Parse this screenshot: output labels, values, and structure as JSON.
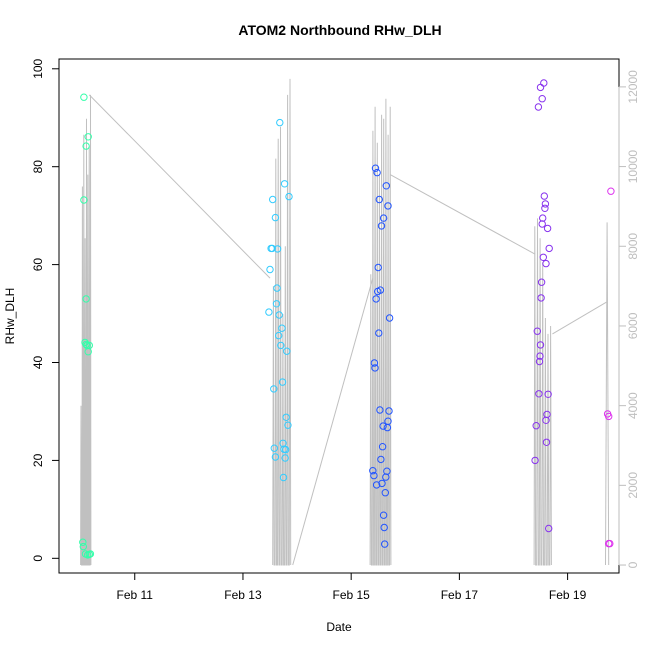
{
  "chart_data": {
    "type": "scatter",
    "title": "ATOM2 Northbound RHw_DLH",
    "xlabel": "Date",
    "ylabel": "RHw_DLH",
    "x_ticks": [
      "Feb 11",
      "Feb 13",
      "Feb 15",
      "Feb 17",
      "Feb 19"
    ],
    "x_tick_positions_days": [
      1.0,
      3.0,
      5.0,
      7.0,
      9.0
    ],
    "x_range_days": [
      -0.4,
      9.95
    ],
    "x_origin": "Feb 10 00:00",
    "y_ticks": [
      0,
      20,
      40,
      60,
      80,
      100
    ],
    "ylim": [
      -3,
      102
    ],
    "y2_ticks": [
      0,
      2000,
      4000,
      6000,
      8000,
      10000,
      12000
    ],
    "y2lim": [
      -200,
      12700
    ],
    "colors": {
      "leg1": "#33ffaa",
      "leg2": "#33ccff",
      "leg3": "#2255ff",
      "leg4": "#8833ee",
      "leg5": "#dd33ee",
      "secondary_line": "#c0c0c0",
      "right_axis": "#bebebe"
    },
    "series": [
      {
        "color_key": "leg1",
        "points": [
          [
            0.06,
            94.2
          ],
          [
            0.06,
            73.2
          ],
          [
            0.08,
            44.1
          ],
          [
            0.1,
            43.7
          ],
          [
            0.12,
            43.5
          ],
          [
            0.14,
            42.2
          ],
          [
            0.16,
            43.5
          ],
          [
            0.1,
            53
          ],
          [
            0.1,
            84.2
          ],
          [
            0.14,
            86.1
          ],
          [
            0.04,
            3.3
          ],
          [
            0.05,
            2.4
          ],
          [
            0.09,
            0.9
          ],
          [
            0.13,
            0.7
          ],
          [
            0.16,
            0.8
          ],
          [
            0.18,
            0.9
          ]
        ]
      },
      {
        "color_key": "leg2",
        "points": [
          [
            3.48,
            50.3
          ],
          [
            3.5,
            59
          ],
          [
            3.52,
            63.3
          ],
          [
            3.54,
            63.3
          ],
          [
            3.55,
            73.3
          ],
          [
            3.57,
            34.6
          ],
          [
            3.58,
            22.5
          ],
          [
            3.6,
            69.6
          ],
          [
            3.6,
            20.7
          ],
          [
            3.62,
            52
          ],
          [
            3.63,
            55.2
          ],
          [
            3.64,
            63.2
          ],
          [
            3.66,
            45.5
          ],
          [
            3.67,
            49.7
          ],
          [
            3.68,
            89
          ],
          [
            3.7,
            43.5
          ],
          [
            3.72,
            47
          ],
          [
            3.73,
            36
          ],
          [
            3.74,
            23.5
          ],
          [
            3.75,
            16.5
          ],
          [
            3.76,
            22.3
          ],
          [
            3.77,
            76.5
          ],
          [
            3.78,
            20.5
          ],
          [
            3.79,
            22.2
          ],
          [
            3.8,
            28.8
          ],
          [
            3.81,
            42.3
          ],
          [
            3.83,
            27.2
          ],
          [
            3.85,
            73.9
          ]
        ]
      },
      {
        "color_key": "leg3",
        "points": [
          [
            5.4,
            17.9
          ],
          [
            5.42,
            16.9
          ],
          [
            5.43,
            39.9
          ],
          [
            5.44,
            38.9
          ],
          [
            5.45,
            79.7
          ],
          [
            5.46,
            53
          ],
          [
            5.47,
            15
          ],
          [
            5.48,
            78.8
          ],
          [
            5.49,
            54.5
          ],
          [
            5.5,
            59.4
          ],
          [
            5.51,
            46
          ],
          [
            5.52,
            73.3
          ],
          [
            5.53,
            30.3
          ],
          [
            5.54,
            54.8
          ],
          [
            5.55,
            20.2
          ],
          [
            5.56,
            67.9
          ],
          [
            5.57,
            15.3
          ],
          [
            5.58,
            22.8
          ],
          [
            5.59,
            27
          ],
          [
            5.6,
            69.5
          ],
          [
            5.6,
            8.8
          ],
          [
            5.61,
            6.3
          ],
          [
            5.62,
            2.9
          ],
          [
            5.63,
            13.4
          ],
          [
            5.64,
            16.6
          ],
          [
            5.65,
            76.1
          ],
          [
            5.66,
            17.8
          ],
          [
            5.67,
            26.7
          ],
          [
            5.68,
            28
          ],
          [
            5.68,
            72
          ],
          [
            5.7,
            30.1
          ],
          [
            5.71,
            49.1
          ]
        ]
      },
      {
        "color_key": "leg4",
        "points": [
          [
            8.4,
            20
          ],
          [
            8.42,
            27.1
          ],
          [
            8.44,
            46.4
          ],
          [
            8.46,
            92.2
          ],
          [
            8.47,
            33.6
          ],
          [
            8.48,
            40.2
          ],
          [
            8.49,
            41.3
          ],
          [
            8.5,
            43.6
          ],
          [
            8.5,
            96.2
          ],
          [
            8.51,
            53.2
          ],
          [
            8.52,
            56.4
          ],
          [
            8.53,
            68.3
          ],
          [
            8.53,
            93.9
          ],
          [
            8.54,
            69.5
          ],
          [
            8.55,
            61.5
          ],
          [
            8.56,
            97.1
          ],
          [
            8.57,
            74
          ],
          [
            8.58,
            71.5
          ],
          [
            8.59,
            72.4
          ],
          [
            8.6,
            60.2
          ],
          [
            8.6,
            28.2
          ],
          [
            8.61,
            23.7
          ],
          [
            8.62,
            29.4
          ],
          [
            8.63,
            67.4
          ],
          [
            8.64,
            33.5
          ],
          [
            8.65,
            6.1
          ],
          [
            8.66,
            63.3
          ]
        ]
      },
      {
        "color_key": "leg5",
        "points": [
          [
            9.74,
            29.5
          ],
          [
            9.76,
            29
          ],
          [
            9.76,
            3
          ],
          [
            9.78,
            3
          ],
          [
            9.8,
            75
          ]
        ]
      }
    ],
    "secondary_series": {
      "axis": "right",
      "type": "line",
      "color_key": "secondary_line",
      "bursts": [
        {
          "x_start": 0.0,
          "x_end": 0.2,
          "peaks": [
            4000,
            9500,
            10800,
            8200,
            11200,
            9800,
            10500,
            11800
          ]
        },
        {
          "x_start": 3.55,
          "x_end": 3.9,
          "peaks": [
            7000,
            10200,
            10700,
            11000,
            6300,
            8000,
            11800,
            12200
          ]
        },
        {
          "x_start": 5.35,
          "x_end": 5.75,
          "peaks": [
            7300,
            10900,
            11500,
            10600,
            9800,
            11300,
            11200,
            11700,
            10800,
            11500
          ]
        },
        {
          "x_start": 8.38,
          "x_end": 8.72,
          "peaks": [
            8500,
            8700,
            8200,
            7600,
            6200,
            5800,
            6000
          ]
        },
        {
          "x_start": 9.7,
          "x_end": 9.8,
          "peaks": [
            8600
          ]
        }
      ],
      "connectors": [
        [
          0.16,
          11800
        ],
        [
          3.5,
          7200
        ],
        [
          3.92,
          0
        ],
        [
          5.4,
          7200
        ],
        [
          5.72,
          9800
        ],
        [
          8.4,
          7800
        ],
        [
          8.72,
          5800
        ],
        [
          9.72,
          6600
        ]
      ]
    }
  }
}
